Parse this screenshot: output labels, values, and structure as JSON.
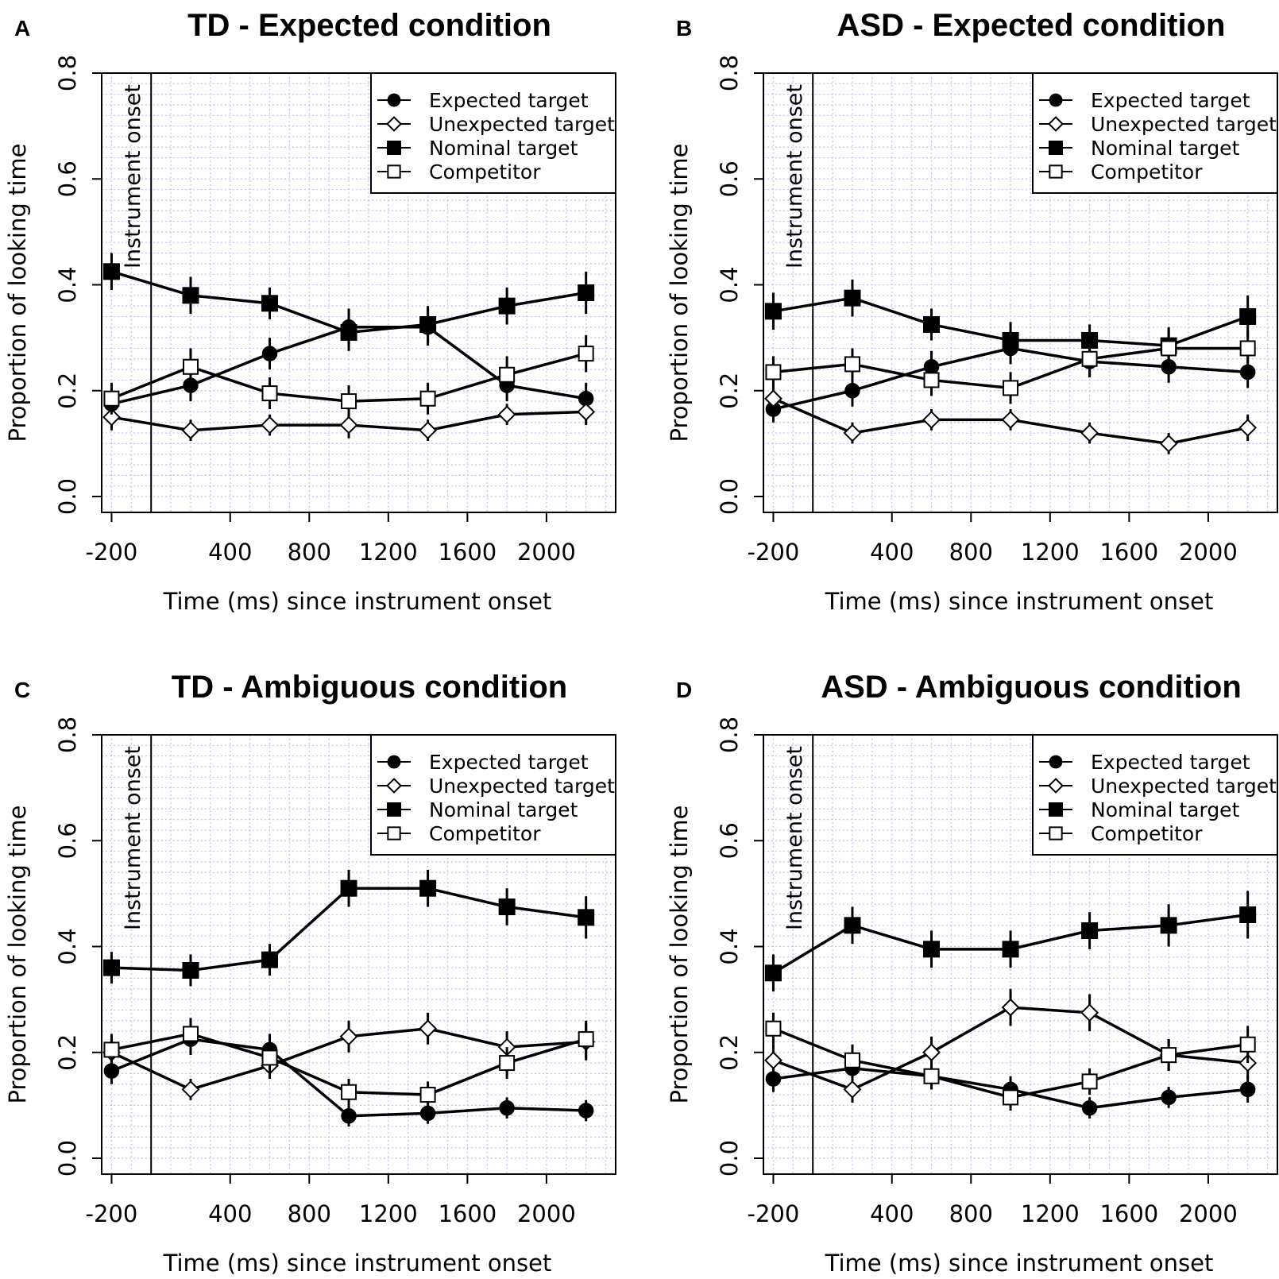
{
  "figure_title": "Proportion of looking time per condition",
  "chart_data": [
    {
      "type": "line",
      "letter": "A",
      "title": "TD - Expected condition",
      "xlabel": "Time (ms) since instrument onset",
      "ylabel": "Proportion of looking time",
      "xlim": [
        -250,
        2350
      ],
      "ylim": [
        -0.03,
        0.8
      ],
      "xticks": [
        -200,
        400,
        800,
        1200,
        1600,
        2000
      ],
      "yticks": [
        0.0,
        0.2,
        0.4,
        0.6,
        0.8
      ],
      "ytick_labels": [
        "0.0",
        "0.2",
        "0.4",
        "0.6",
        "0.8"
      ],
      "onset_x": 0,
      "onset_label": "Instrument onset",
      "grid": true,
      "legend_position": "top-right",
      "x": [
        -200,
        200,
        600,
        1000,
        1400,
        1800,
        2200
      ],
      "series": [
        {
          "name": "Expected target",
          "marker": "filled-circle",
          "values": [
            0.175,
            0.21,
            0.27,
            0.32,
            0.32,
            0.21,
            0.185
          ],
          "err": [
            0.03,
            0.03,
            0.03,
            0.035,
            0.035,
            0.03,
            0.03
          ]
        },
        {
          "name": "Unexpected target",
          "marker": "open-diamond",
          "values": [
            0.15,
            0.125,
            0.135,
            0.135,
            0.125,
            0.155,
            0.16
          ],
          "err": [
            0.025,
            0.02,
            0.02,
            0.025,
            0.02,
            0.02,
            0.025
          ]
        },
        {
          "name": "Nominal target",
          "marker": "filled-square",
          "values": [
            0.425,
            0.38,
            0.365,
            0.31,
            0.325,
            0.36,
            0.385
          ],
          "err": [
            0.035,
            0.035,
            0.03,
            0.035,
            0.035,
            0.035,
            0.04
          ]
        },
        {
          "name": "Competitor",
          "marker": "open-square",
          "values": [
            0.185,
            0.245,
            0.195,
            0.18,
            0.185,
            0.23,
            0.27
          ],
          "err": [
            0.03,
            0.035,
            0.03,
            0.03,
            0.03,
            0.035,
            0.035
          ]
        }
      ]
    },
    {
      "type": "line",
      "letter": "B",
      "title": "ASD - Expected condition",
      "xlabel": "Time (ms) since instrument onset",
      "ylabel": "Proportion of looking time",
      "xlim": [
        -250,
        2350
      ],
      "ylim": [
        -0.03,
        0.8
      ],
      "xticks": [
        -200,
        400,
        800,
        1200,
        1600,
        2000
      ],
      "yticks": [
        0.0,
        0.2,
        0.4,
        0.6,
        0.8
      ],
      "ytick_labels": [
        "0.0",
        "0.2",
        "0.4",
        "0.6",
        "0.8"
      ],
      "onset_x": 0,
      "onset_label": "Instrument onset",
      "grid": true,
      "legend_position": "top-right",
      "x": [
        -200,
        200,
        600,
        1000,
        1400,
        1800,
        2200
      ],
      "series": [
        {
          "name": "Expected target",
          "marker": "filled-circle",
          "values": [
            0.165,
            0.2,
            0.245,
            0.28,
            0.255,
            0.245,
            0.235
          ],
          "err": [
            0.025,
            0.03,
            0.03,
            0.03,
            0.03,
            0.03,
            0.03
          ]
        },
        {
          "name": "Unexpected target",
          "marker": "open-diamond",
          "values": [
            0.185,
            0.12,
            0.145,
            0.145,
            0.12,
            0.1,
            0.13
          ],
          "err": [
            0.025,
            0.02,
            0.02,
            0.02,
            0.02,
            0.02,
            0.025
          ]
        },
        {
          "name": "Nominal target",
          "marker": "filled-square",
          "values": [
            0.35,
            0.375,
            0.325,
            0.295,
            0.295,
            0.285,
            0.34
          ],
          "err": [
            0.035,
            0.035,
            0.03,
            0.035,
            0.03,
            0.035,
            0.04
          ]
        },
        {
          "name": "Competitor",
          "marker": "open-square",
          "values": [
            0.235,
            0.25,
            0.22,
            0.205,
            0.26,
            0.28,
            0.28
          ],
          "err": [
            0.03,
            0.03,
            0.03,
            0.03,
            0.035,
            0.035,
            0.035
          ]
        }
      ]
    },
    {
      "type": "line",
      "letter": "C",
      "title": "TD - Ambiguous condition",
      "xlabel": "Time (ms) since instrument onset",
      "ylabel": "Proportion of looking time",
      "xlim": [
        -250,
        2350
      ],
      "ylim": [
        -0.03,
        0.8
      ],
      "xticks": [
        -200,
        400,
        800,
        1200,
        1600,
        2000
      ],
      "yticks": [
        0.0,
        0.2,
        0.4,
        0.6,
        0.8
      ],
      "ytick_labels": [
        "0.0",
        "0.2",
        "0.4",
        "0.6",
        "0.8"
      ],
      "onset_x": 0,
      "onset_label": "Instrument onset",
      "grid": true,
      "legend_position": "top-right",
      "x": [
        -200,
        200,
        600,
        1000,
        1400,
        1800,
        2200
      ],
      "series": [
        {
          "name": "Expected target",
          "marker": "filled-circle",
          "values": [
            0.165,
            0.225,
            0.205,
            0.08,
            0.085,
            0.095,
            0.09
          ],
          "err": [
            0.025,
            0.03,
            0.03,
            0.02,
            0.02,
            0.02,
            0.02
          ]
        },
        {
          "name": "Unexpected target",
          "marker": "open-diamond",
          "values": [
            0.2,
            0.13,
            0.175,
            0.23,
            0.245,
            0.21,
            0.22
          ],
          "err": [
            0.03,
            0.02,
            0.025,
            0.03,
            0.03,
            0.03,
            0.035
          ]
        },
        {
          "name": "Nominal target",
          "marker": "filled-square",
          "values": [
            0.36,
            0.355,
            0.375,
            0.51,
            0.51,
            0.475,
            0.455
          ],
          "err": [
            0.03,
            0.03,
            0.03,
            0.035,
            0.035,
            0.035,
            0.04
          ]
        },
        {
          "name": "Competitor",
          "marker": "open-square",
          "values": [
            0.205,
            0.235,
            0.19,
            0.125,
            0.12,
            0.18,
            0.225
          ],
          "err": [
            0.03,
            0.03,
            0.03,
            0.025,
            0.025,
            0.03,
            0.035
          ]
        }
      ]
    },
    {
      "type": "line",
      "letter": "D",
      "title": "ASD - Ambiguous condition",
      "xlabel": "Time (ms) since instrument onset",
      "ylabel": "Proportion of looking time",
      "xlim": [
        -250,
        2350
      ],
      "ylim": [
        -0.03,
        0.8
      ],
      "xticks": [
        -200,
        400,
        800,
        1200,
        1600,
        2000
      ],
      "yticks": [
        0.0,
        0.2,
        0.4,
        0.6,
        0.8
      ],
      "ytick_labels": [
        "0.0",
        "0.2",
        "0.4",
        "0.6",
        "0.8"
      ],
      "onset_x": 0,
      "onset_label": "Instrument onset",
      "grid": true,
      "legend_position": "top-right",
      "x": [
        -200,
        200,
        600,
        1000,
        1400,
        1800,
        2200
      ],
      "series": [
        {
          "name": "Expected target",
          "marker": "filled-circle",
          "values": [
            0.15,
            0.17,
            0.155,
            0.13,
            0.095,
            0.115,
            0.13
          ],
          "err": [
            0.025,
            0.025,
            0.025,
            0.025,
            0.02,
            0.02,
            0.025
          ]
        },
        {
          "name": "Unexpected target",
          "marker": "open-diamond",
          "values": [
            0.185,
            0.13,
            0.2,
            0.285,
            0.275,
            0.195,
            0.18
          ],
          "err": [
            0.03,
            0.025,
            0.03,
            0.035,
            0.035,
            0.03,
            0.03
          ]
        },
        {
          "name": "Nominal target",
          "marker": "filled-square",
          "values": [
            0.35,
            0.44,
            0.395,
            0.395,
            0.43,
            0.44,
            0.46
          ],
          "err": [
            0.035,
            0.035,
            0.035,
            0.035,
            0.035,
            0.04,
            0.045
          ]
        },
        {
          "name": "Competitor",
          "marker": "open-square",
          "values": [
            0.245,
            0.185,
            0.155,
            0.115,
            0.145,
            0.195,
            0.215
          ],
          "err": [
            0.03,
            0.03,
            0.025,
            0.025,
            0.025,
            0.03,
            0.035
          ]
        }
      ]
    }
  ]
}
